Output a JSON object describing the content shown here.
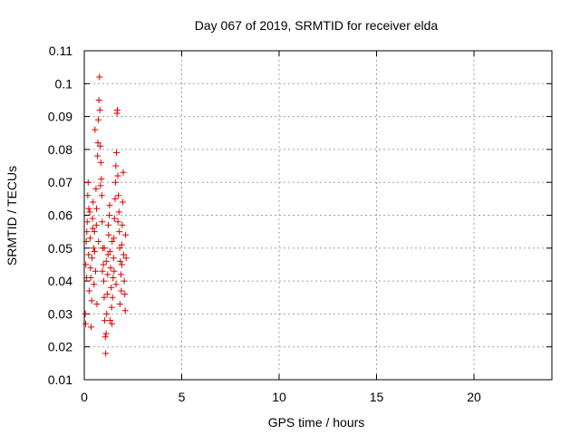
{
  "chart_data": {
    "type": "scatter",
    "title": "Day 067 of 2019, SRMTID for receiver elda",
    "xlabel": "GPS time / hours",
    "ylabel": "SRMTID / TECUs",
    "xlim": [
      0,
      24
    ],
    "ylim": [
      0.01,
      0.11
    ],
    "xticks": [
      0,
      5,
      10,
      15,
      20
    ],
    "xtick_labels": [
      "0",
      "5",
      "10",
      "15",
      "20"
    ],
    "yticks": [
      0.01,
      0.02,
      0.03,
      0.04,
      0.05,
      0.06,
      0.07,
      0.08,
      0.09,
      0.1,
      0.11
    ],
    "ytick_labels": [
      "0.01",
      "0.02",
      "0.03",
      "0.04",
      "0.05",
      "0.06",
      "0.07",
      "0.08",
      "0.09",
      "0.1",
      "0.11"
    ],
    "grid": true,
    "marker": "+",
    "color": "#dd0000",
    "series": [
      {
        "points": [
          [
            0.05,
            0.03
          ],
          [
            0.08,
            0.045
          ],
          [
            0.1,
            0.052
          ],
          [
            0.12,
            0.041
          ],
          [
            0.15,
            0.058
          ],
          [
            0.18,
            0.066
          ],
          [
            0.2,
            0.07
          ],
          [
            0.22,
            0.048
          ],
          [
            0.25,
            0.037
          ],
          [
            0.28,
            0.061
          ],
          [
            0.3,
            0.053
          ],
          [
            0.32,
            0.044
          ],
          [
            0.35,
            0.026
          ],
          [
            0.38,
            0.034
          ],
          [
            0.4,
            0.047
          ],
          [
            0.42,
            0.059
          ],
          [
            0.45,
            0.064
          ],
          [
            0.48,
            0.05
          ],
          [
            0.5,
            0.039
          ],
          [
            0.52,
            0.055
          ],
          [
            0.55,
            0.086
          ],
          [
            0.58,
            0.043
          ],
          [
            0.6,
            0.068
          ],
          [
            0.62,
            0.057
          ],
          [
            0.65,
            0.033
          ],
          [
            0.68,
            0.078
          ],
          [
            0.7,
            0.082
          ],
          [
            0.72,
            0.089
          ],
          [
            0.75,
            0.095
          ],
          [
            0.78,
            0.102
          ],
          [
            0.8,
            0.092
          ],
          [
            0.82,
            0.081
          ],
          [
            0.85,
            0.076
          ],
          [
            0.88,
            0.071
          ],
          [
            0.9,
            0.066
          ],
          [
            0.92,
            0.058
          ],
          [
            0.95,
            0.05
          ],
          [
            0.98,
            0.045
          ],
          [
            1.0,
            0.04
          ],
          [
            1.02,
            0.035
          ],
          [
            1.05,
            0.028
          ],
          [
            1.08,
            0.023
          ],
          [
            1.1,
            0.018
          ],
          [
            1.12,
            0.024
          ],
          [
            1.15,
            0.03
          ],
          [
            1.18,
            0.036
          ],
          [
            1.2,
            0.042
          ],
          [
            1.22,
            0.048
          ],
          [
            1.25,
            0.054
          ],
          [
            1.28,
            0.06
          ],
          [
            1.3,
            0.063
          ],
          [
            1.32,
            0.049
          ],
          [
            1.35,
            0.044
          ],
          [
            1.38,
            0.038
          ],
          [
            1.4,
            0.032
          ],
          [
            1.42,
            0.027
          ],
          [
            1.45,
            0.035
          ],
          [
            1.48,
            0.041
          ],
          [
            1.5,
            0.047
          ],
          [
            1.52,
            0.053
          ],
          [
            1.55,
            0.059
          ],
          [
            1.58,
            0.065
          ],
          [
            1.6,
            0.07
          ],
          [
            1.62,
            0.075
          ],
          [
            1.65,
            0.079
          ],
          [
            1.68,
            0.091
          ],
          [
            1.7,
            0.092
          ],
          [
            1.72,
            0.072
          ],
          [
            1.75,
            0.066
          ],
          [
            1.78,
            0.061
          ],
          [
            1.8,
            0.055
          ],
          [
            1.82,
            0.05
          ],
          [
            1.85,
            0.046
          ],
          [
            1.88,
            0.042
          ],
          [
            1.9,
            0.037
          ],
          [
            1.92,
            0.051
          ],
          [
            1.95,
            0.057
          ],
          [
            1.98,
            0.064
          ],
          [
            2.0,
            0.073
          ],
          [
            2.02,
            0.048
          ],
          [
            2.05,
            0.04
          ],
          [
            2.08,
            0.036
          ],
          [
            2.1,
            0.031
          ],
          [
            2.12,
            0.054
          ],
          [
            2.15,
            0.047
          ],
          [
            0.07,
            0.027
          ],
          [
            0.13,
            0.055
          ],
          [
            0.23,
            0.062
          ],
          [
            0.33,
            0.041
          ],
          [
            0.43,
            0.056
          ],
          [
            0.53,
            0.049
          ],
          [
            0.63,
            0.062
          ],
          [
            0.73,
            0.052
          ],
          [
            0.83,
            0.069
          ],
          [
            0.93,
            0.043
          ],
          [
            1.03,
            0.05
          ],
          [
            1.13,
            0.046
          ],
          [
            1.23,
            0.057
          ],
          [
            1.33,
            0.028
          ],
          [
            1.43,
            0.052
          ],
          [
            1.53,
            0.043
          ],
          [
            1.63,
            0.039
          ],
          [
            1.73,
            0.058
          ],
          [
            1.83,
            0.033
          ],
          [
            1.93,
            0.045
          ]
        ]
      }
    ]
  }
}
